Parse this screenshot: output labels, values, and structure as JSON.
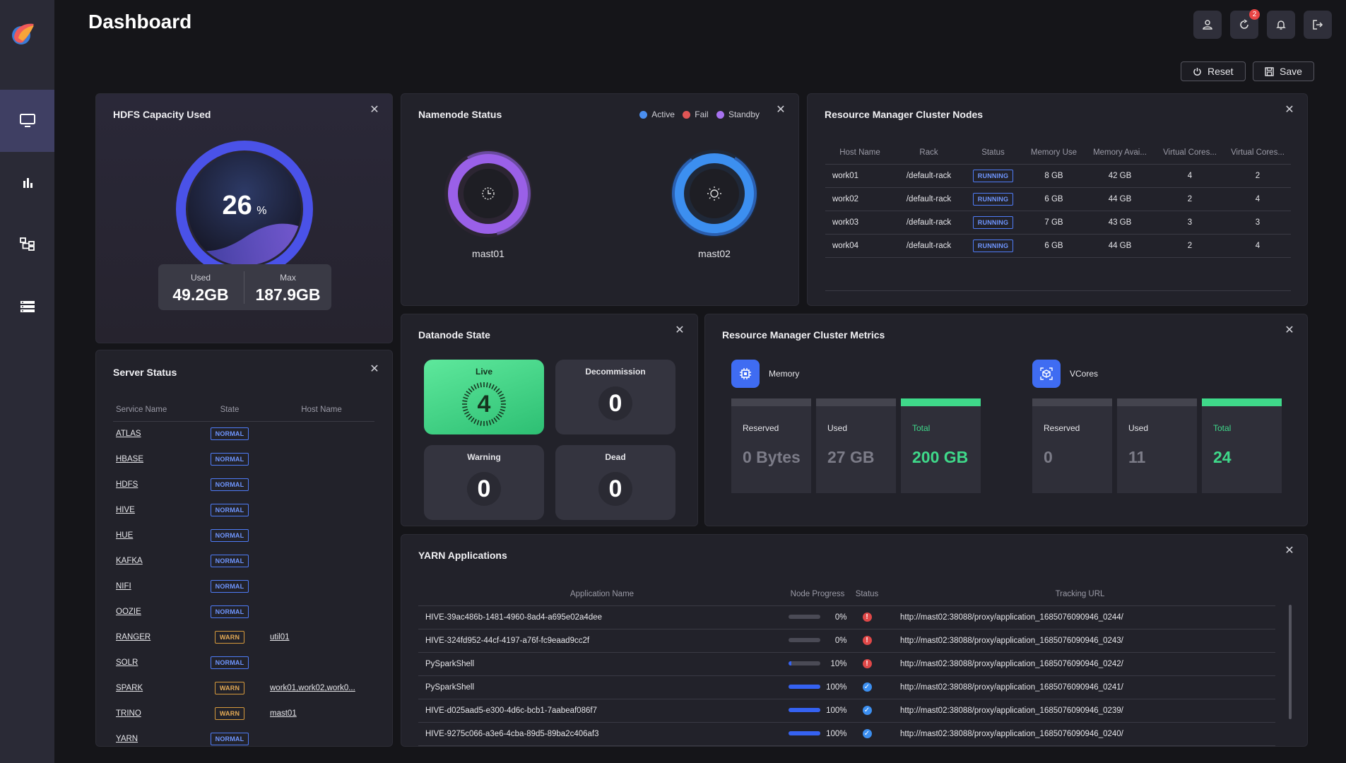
{
  "page": {
    "title": "Dashboard"
  },
  "toolbar": {
    "notification_count": "2",
    "reset_label": "Reset",
    "save_label": "Save"
  },
  "sidebar": {
    "items": [
      {
        "icon": "monitor-icon",
        "active": true
      },
      {
        "icon": "bar-chart-icon",
        "active": false
      },
      {
        "icon": "hierarchy-icon",
        "active": false
      },
      {
        "icon": "list-icon",
        "active": false
      }
    ]
  },
  "hdfs": {
    "title": "HDFS Capacity Used",
    "percent": "26",
    "percent_unit": "%",
    "used_label": "Used",
    "used_value": "49.2GB",
    "max_label": "Max",
    "max_value": "187.9GB"
  },
  "namenode": {
    "title": "Namenode Status",
    "legend": [
      {
        "label": "Active",
        "color": "#4a8ff0"
      },
      {
        "label": "Fail",
        "color": "#e05555"
      },
      {
        "label": "Standby",
        "color": "#a772f0"
      }
    ],
    "nodes": [
      {
        "name": "mast01",
        "status": "Standby"
      },
      {
        "name": "mast02",
        "status": "Active"
      }
    ]
  },
  "rm_nodes": {
    "title": "Resource Manager Cluster Nodes",
    "columns": [
      "Host Name",
      "Rack",
      "Status",
      "Memory Use",
      "Memory Avai...",
      "Virtual Cores...",
      "Virtual Cores..."
    ],
    "rows": [
      [
        "work01",
        "/default-rack",
        "RUNNING",
        "8 GB",
        "42 GB",
        "4",
        "2"
      ],
      [
        "work02",
        "/default-rack",
        "RUNNING",
        "6 GB",
        "44 GB",
        "2",
        "4"
      ],
      [
        "work03",
        "/default-rack",
        "RUNNING",
        "7 GB",
        "43 GB",
        "3",
        "3"
      ],
      [
        "work04",
        "/default-rack",
        "RUNNING",
        "6 GB",
        "44 GB",
        "2",
        "4"
      ]
    ]
  },
  "server_status": {
    "title": "Server Status",
    "columns": [
      "Service Name",
      "State",
      "Host Name"
    ],
    "rows": [
      [
        "ATLAS",
        "NORMAL",
        ""
      ],
      [
        "HBASE",
        "NORMAL",
        ""
      ],
      [
        "HDFS",
        "NORMAL",
        ""
      ],
      [
        "HIVE",
        "NORMAL",
        ""
      ],
      [
        "HUE",
        "NORMAL",
        ""
      ],
      [
        "KAFKA",
        "NORMAL",
        ""
      ],
      [
        "NIFI",
        "NORMAL",
        ""
      ],
      [
        "OOZIE",
        "NORMAL",
        ""
      ],
      [
        "RANGER",
        "WARN",
        "util01"
      ],
      [
        "SOLR",
        "NORMAL",
        ""
      ],
      [
        "SPARK",
        "WARN",
        "work01,work02,work0..."
      ],
      [
        "TRINO",
        "WARN",
        "mast01"
      ],
      [
        "YARN",
        "NORMAL",
        ""
      ]
    ]
  },
  "datanode": {
    "title": "Datanode State",
    "live_label": "Live",
    "live_value": "4",
    "decom_label": "Decommission",
    "decom_value": "0",
    "warning_label": "Warning",
    "warning_value": "0",
    "dead_label": "Dead",
    "dead_value": "0"
  },
  "rm_metrics": {
    "title": "Resource Manager Cluster Metrics",
    "memory": {
      "label": "Memory",
      "reserved_label": "Reserved",
      "reserved": "0 Bytes",
      "used_label": "Used",
      "used": "27 GB",
      "total_label": "Total",
      "total": "200 GB"
    },
    "vcores": {
      "label": "VCores",
      "reserved_label": "Reserved",
      "reserved": "0",
      "used_label": "Used",
      "used": "11",
      "total_label": "Total",
      "total": "24"
    }
  },
  "yarn": {
    "title": "YARN Applications",
    "columns": [
      "Application Name",
      "Node Progress",
      "Status",
      "Tracking URL"
    ],
    "rows": [
      {
        "name": "HIVE-39ac486b-1481-4960-8ad4-a695e02a4dee",
        "progress": 0,
        "progress_label": "0%",
        "status": "error",
        "url": "http://mast02:38088/proxy/application_1685076090946_0244/"
      },
      {
        "name": "HIVE-324fd952-44cf-4197-a76f-fc9eaad9cc2f",
        "progress": 0,
        "progress_label": "0%",
        "status": "error",
        "url": "http://mast02:38088/proxy/application_1685076090946_0243/"
      },
      {
        "name": "PySparkShell",
        "progress": 10,
        "progress_label": "10%",
        "status": "error",
        "url": "http://mast02:38088/proxy/application_1685076090946_0242/"
      },
      {
        "name": "PySparkShell",
        "progress": 100,
        "progress_label": "100%",
        "status": "success",
        "url": "http://mast02:38088/proxy/application_1685076090946_0241/"
      },
      {
        "name": "HIVE-d025aad5-e300-4d6c-bcb1-7aabeaf086f7",
        "progress": 100,
        "progress_label": "100%",
        "status": "success",
        "url": "http://mast02:38088/proxy/application_1685076090946_0239/"
      },
      {
        "name": "HIVE-9275c066-a3e6-4cba-89d5-89ba2c406af3",
        "progress": 100,
        "progress_label": "100%",
        "status": "success",
        "url": "http://mast02:38088/proxy/application_1685076090946_0240/"
      }
    ]
  }
}
